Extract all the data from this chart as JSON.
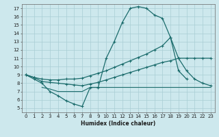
{
  "title": "",
  "xlabel": "Humidex (Indice chaleur)",
  "x_ticks": [
    0,
    1,
    2,
    3,
    4,
    5,
    6,
    7,
    8,
    9,
    10,
    11,
    12,
    13,
    14,
    15,
    16,
    17,
    18,
    19,
    20,
    21,
    22,
    23
  ],
  "y_ticks": [
    5,
    6,
    7,
    8,
    9,
    10,
    11,
    12,
    13,
    14,
    15,
    16,
    17
  ],
  "xlim": [
    -0.5,
    23.5
  ],
  "ylim": [
    4.5,
    17.5
  ],
  "bg_color": "#cde8ed",
  "line_color": "#1a6b6b",
  "grid_color": "#a8cdd4",
  "series": [
    {
      "x": [
        0,
        1,
        2,
        3,
        4,
        5,
        6,
        7,
        8,
        9,
        10,
        11,
        12,
        13,
        14,
        15,
        16,
        17,
        18,
        19,
        20
      ],
      "y": [
        9,
        8.5,
        8,
        7,
        6.5,
        5.9,
        5.5,
        5.2,
        7.5,
        7.5,
        11,
        13,
        15.3,
        17,
        17.2,
        17.0,
        16.2,
        15.8,
        13.5,
        9.5,
        8.5
      ],
      "marker": "+",
      "markersize": 3.0,
      "lw": 0.9
    },
    {
      "x": [
        0,
        1,
        2,
        3,
        4,
        5,
        6,
        7,
        8,
        9,
        10,
        11,
        12,
        13,
        14,
        15,
        16,
        17,
        18,
        19,
        20,
        21,
        22,
        23
      ],
      "y": [
        9,
        8.7,
        8.5,
        8.4,
        8.4,
        8.5,
        8.5,
        8.6,
        8.9,
        9.2,
        9.5,
        9.9,
        10.3,
        10.7,
        11.1,
        11.5,
        12.0,
        12.5,
        13.5,
        11,
        9.5,
        8.5,
        8.0,
        7.7
      ],
      "marker": "+",
      "markersize": 3.0,
      "lw": 0.9
    },
    {
      "x": [
        0,
        1,
        2,
        3,
        4,
        5,
        6,
        7,
        8,
        9,
        10,
        11,
        12,
        13,
        14,
        15,
        16,
        17,
        18,
        19,
        20,
        21,
        22,
        23
      ],
      "y": [
        9,
        8.7,
        8.2,
        8.1,
        8.0,
        7.9,
        7.8,
        7.7,
        7.9,
        8.1,
        8.4,
        8.7,
        9.0,
        9.3,
        9.6,
        9.9,
        10.2,
        10.5,
        10.7,
        11.0,
        11.0,
        11.0,
        11.0,
        11.0
      ],
      "marker": "+",
      "markersize": 3.0,
      "lw": 0.9
    },
    {
      "x": [
        2,
        3,
        4,
        5,
        6,
        7,
        8,
        9,
        10,
        11,
        12,
        13,
        14,
        15,
        16,
        17,
        18,
        19,
        20,
        21,
        22,
        23
      ],
      "y": [
        7.5,
        7.3,
        7.0,
        7.0,
        7.0,
        7.0,
        7.5,
        7.5,
        7.5,
        7.5,
        7.5,
        7.5,
        7.5,
        7.5,
        7.5,
        7.5,
        7.5,
        7.5,
        7.5,
        7.5,
        7.5,
        7.5
      ],
      "marker": null,
      "markersize": 0,
      "lw": 0.8
    }
  ]
}
